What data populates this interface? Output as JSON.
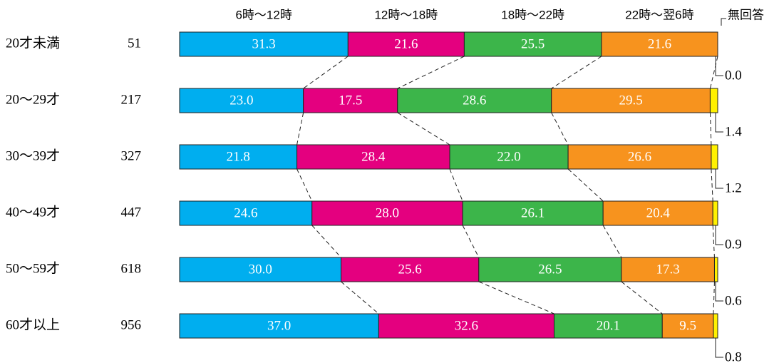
{
  "chart_data": {
    "type": "stacked-bar-100",
    "categories": [
      "20才未満",
      "20～29才",
      "30～39才",
      "40～49才",
      "50～59才",
      "60才以上"
    ],
    "counts": [
      51,
      217,
      327,
      447,
      618,
      956
    ],
    "xlim": [
      0,
      100
    ],
    "series": [
      {
        "name": "6時～12時",
        "color": "#00aeef",
        "values": [
          31.3,
          23.0,
          21.8,
          24.6,
          30.0,
          37.0
        ],
        "value_labels": [
          "31.3",
          "23.0",
          "21.8",
          "24.6",
          "30.0",
          "37.0"
        ]
      },
      {
        "name": "12時～18時",
        "color": "#e4007f",
        "values": [
          21.6,
          17.5,
          28.4,
          28.0,
          25.6,
          32.6
        ],
        "value_labels": [
          "21.6",
          "17.5",
          "28.4",
          "28.0",
          "25.6",
          "32.6"
        ]
      },
      {
        "name": "18時～22時",
        "color": "#3cb54a",
        "values": [
          25.5,
          28.6,
          22.0,
          26.1,
          26.5,
          20.1
        ],
        "value_labels": [
          "25.5",
          "28.6",
          "22.0",
          "26.1",
          "26.5",
          "20.1"
        ]
      },
      {
        "name": "22時～翌6時",
        "color": "#f7931e",
        "values": [
          21.6,
          29.5,
          26.6,
          20.4,
          17.3,
          9.5
        ],
        "value_labels": [
          "21.6",
          "29.5",
          "26.6",
          "20.4",
          "17.3",
          "9.5"
        ]
      },
      {
        "name": "無回答",
        "color": "#fff100",
        "values": [
          0.0,
          1.4,
          1.2,
          0.9,
          0.6,
          0.8
        ],
        "value_labels": [
          "0.0",
          "1.4",
          "1.2",
          "0.9",
          "0.6",
          "0.8"
        ]
      }
    ]
  }
}
